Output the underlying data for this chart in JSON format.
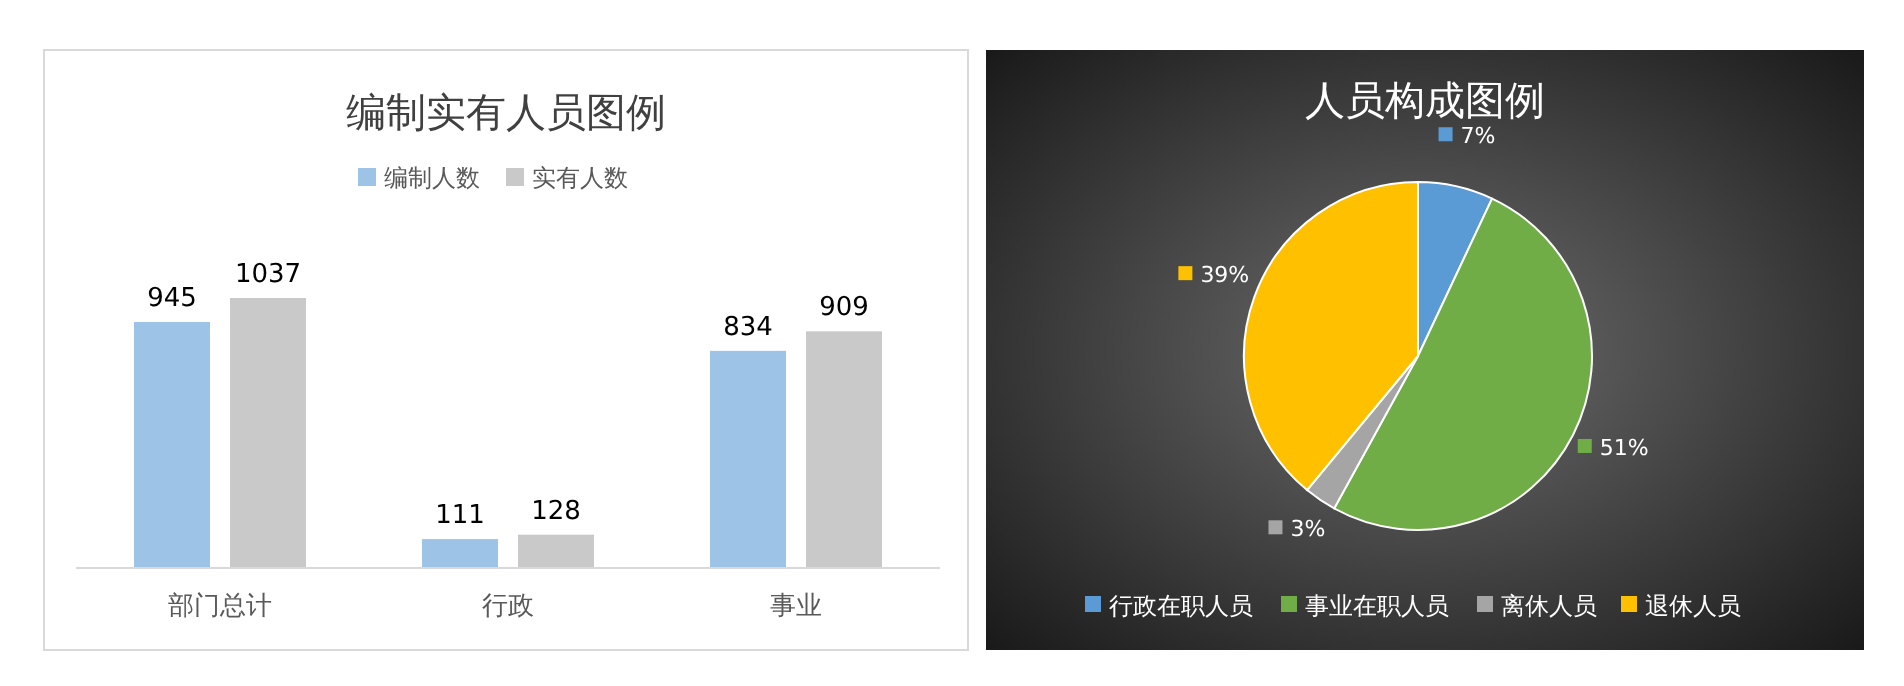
{
  "chart_data": [
    {
      "type": "bar",
      "title": "编制实有人员图例",
      "categories": [
        "部门总计",
        "行政",
        "事业"
      ],
      "series": [
        {
          "name": "编制人数",
          "color": "#9dc3e6",
          "values": [
            945,
            111,
            834
          ]
        },
        {
          "name": "实有人数",
          "color": "#c9c9c9",
          "values": [
            1037,
            128,
            909
          ]
        }
      ],
      "data_labels": true,
      "legend": "top",
      "grid": false
    },
    {
      "type": "pie",
      "title": "人员构成图例",
      "categories": [
        "行政在职人员",
        "事业在职人员",
        "离休人员",
        "退休人员"
      ],
      "values": [
        7,
        51,
        3,
        39
      ],
      "value_labels": [
        "7%",
        "51%",
        "3%",
        "39%"
      ],
      "colors": [
        "#5b9bd5",
        "#70ad47",
        "#a5a5a5",
        "#ffc000"
      ],
      "legend": "bottom"
    }
  ]
}
